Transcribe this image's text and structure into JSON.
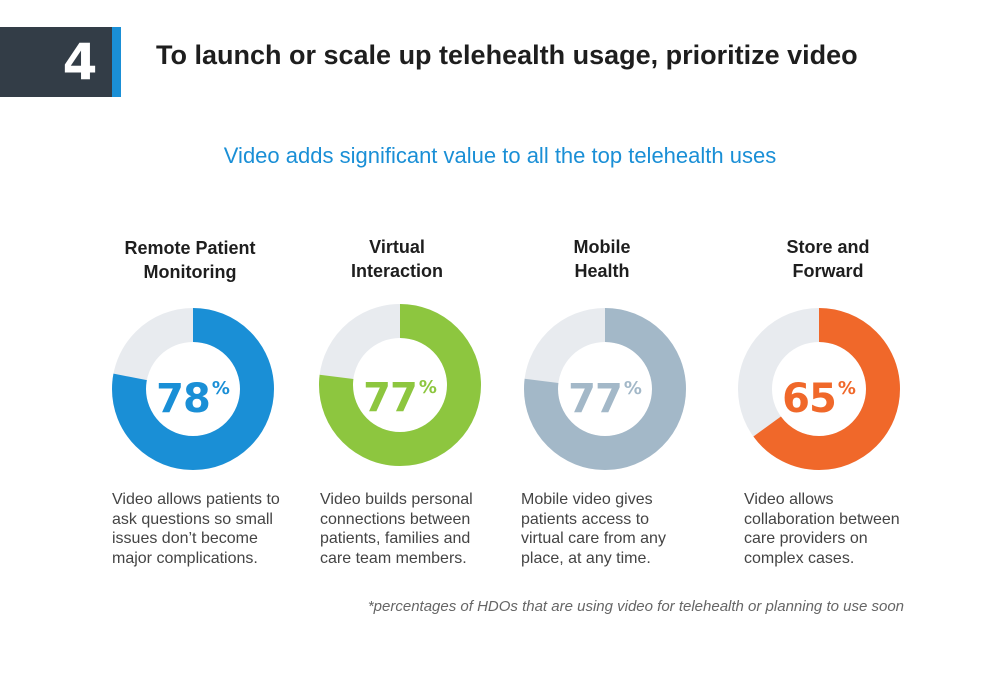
{
  "header": {
    "number": "4",
    "title": "To launch or scale up telehealth usage, prioritize video"
  },
  "subtitle": "Video adds significant value to all the top telehealth uses",
  "footnote": "*percentages of HDOs that are using video for telehealth or planning to use soon",
  "colors": {
    "remaining": "#e8ebef",
    "badge_bg": "#333d47",
    "badge_stripe": "#1a8fd6",
    "subtitle": "#1a8fd6"
  },
  "chart_data": {
    "type": "pie",
    "variant": "donut",
    "unit": "%",
    "items": [
      {
        "category_line1": "Remote Patient",
        "category_line2": "Monitoring",
        "value": 78,
        "value_label": "78",
        "percent_sign": "%",
        "color": "#1a8fd6",
        "description": "Video allows patients to ask questions so small issues don’t become major complications."
      },
      {
        "category_line1": "Virtual",
        "category_line2": "Interaction",
        "value": 77,
        "value_label": "77",
        "percent_sign": "%",
        "color": "#8dc63f",
        "description": "Video builds personal connections between patients, families and care team members."
      },
      {
        "category_line1": "Mobile",
        "category_line2": "Health",
        "value": 77,
        "value_label": "77",
        "percent_sign": "%",
        "color": "#a3b8c8",
        "description": "Mobile video gives patients access to virtual care from any place, at any time."
      },
      {
        "category_line1": "Store and",
        "category_line2": "Forward",
        "value": 65,
        "value_label": "65",
        "percent_sign": "%",
        "color": "#f0682a",
        "description": "Video allows collaboration between care providers on complex cases."
      }
    ]
  }
}
